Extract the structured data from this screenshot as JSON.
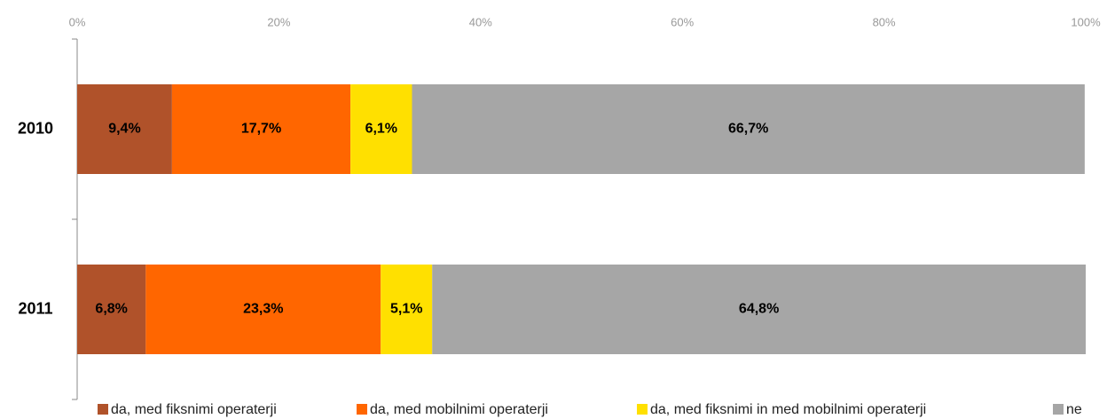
{
  "chart_data": {
    "type": "bar",
    "orientation": "horizontal",
    "stacked": true,
    "categories": [
      "2010",
      "2011"
    ],
    "series": [
      {
        "name": "da, med fiksnimi operaterji",
        "color": "#b0522a",
        "values": [
          9.4,
          6.8
        ],
        "value_labels": [
          "9,4%",
          "6,8%"
        ]
      },
      {
        "name": "da, med mobilnimi operaterji",
        "color": "#ff6600",
        "values": [
          17.7,
          23.3
        ],
        "value_labels": [
          "17,7%",
          "23,3%"
        ]
      },
      {
        "name": "da, med fiksnimi in med mobilnimi operaterji",
        "color": "#ffe000",
        "values": [
          6.1,
          5.1
        ],
        "value_labels": [
          "6,1%",
          "5,1%"
        ]
      },
      {
        "name": "ne",
        "color": "#a6a6a6",
        "values": [
          66.7,
          64.8
        ],
        "value_labels": [
          "66,7%",
          "64,8%"
        ]
      }
    ],
    "xlim": [
      0,
      100
    ],
    "xticks": [
      {
        "value": 0,
        "label": "0%"
      },
      {
        "value": 20,
        "label": "20%"
      },
      {
        "value": 40,
        "label": "40%"
      },
      {
        "value": 60,
        "label": "60%"
      },
      {
        "value": 80,
        "label": "80%"
      },
      {
        "value": 100,
        "label": "100%"
      }
    ],
    "grid": false,
    "legend": "bottom"
  }
}
